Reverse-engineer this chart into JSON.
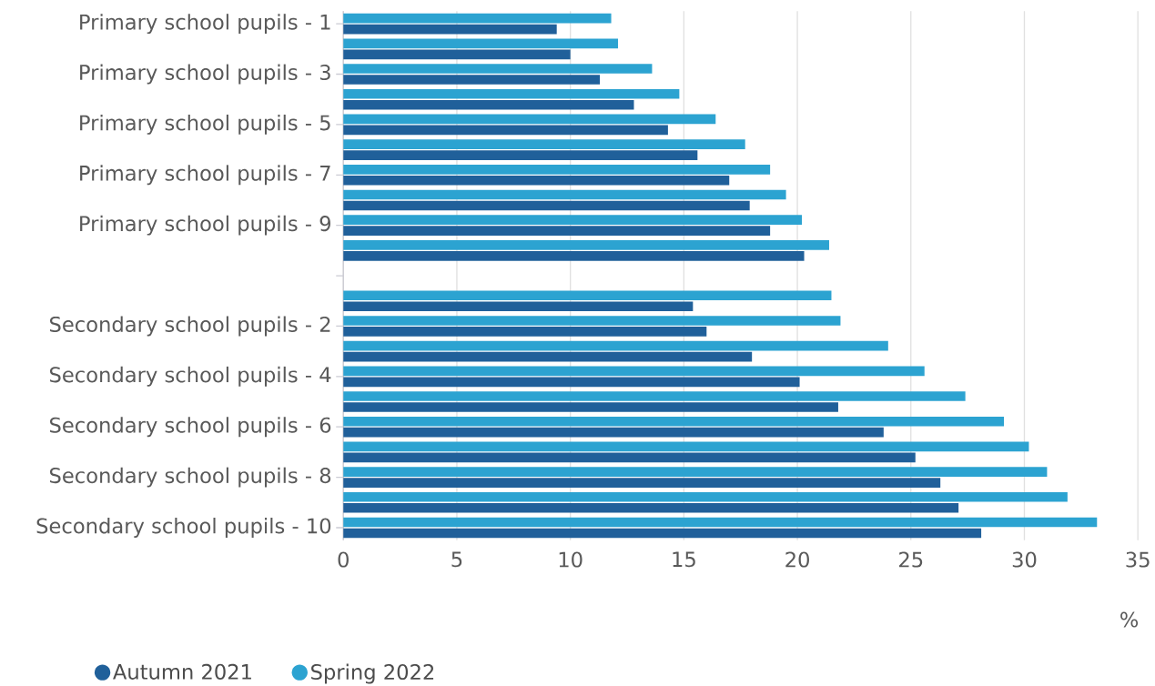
{
  "chart_data": {
    "type": "bar",
    "orientation": "horizontal",
    "xlabel": "%",
    "categories": [
      "Primary school pupils - 1",
      null,
      "Primary school pupils - 3",
      null,
      "Primary school pupils - 5",
      null,
      "Primary school pupils - 7",
      null,
      "Primary school pupils - 9",
      null,
      null,
      null,
      "Secondary school pupils - 2",
      null,
      "Secondary school pupils - 4",
      null,
      "Secondary school pupils - 6",
      null,
      "Secondary school pupils - 8",
      null,
      "Secondary school pupils - 10"
    ],
    "series": [
      {
        "name": "Autumn 2021",
        "color": "#20609a",
        "values": [
          9.4,
          10.0,
          11.3,
          12.8,
          14.3,
          15.6,
          17.0,
          17.9,
          18.8,
          20.3,
          null,
          15.4,
          16.0,
          18.0,
          20.1,
          21.8,
          23.8,
          25.2,
          26.3,
          27.1,
          28.1
        ]
      },
      {
        "name": "Spring 2022",
        "color": "#2ca3d1",
        "values": [
          11.8,
          12.1,
          13.6,
          14.8,
          16.4,
          17.7,
          18.8,
          19.5,
          20.2,
          21.4,
          null,
          21.5,
          21.9,
          24.0,
          25.6,
          27.4,
          29.1,
          30.2,
          31.0,
          31.9,
          33.2
        ]
      }
    ],
    "xlim": [
      0,
      35
    ],
    "xticks": [
      0,
      5,
      10,
      15,
      20,
      25,
      30,
      35
    ],
    "grid": "x",
    "legend": "bottom left"
  }
}
